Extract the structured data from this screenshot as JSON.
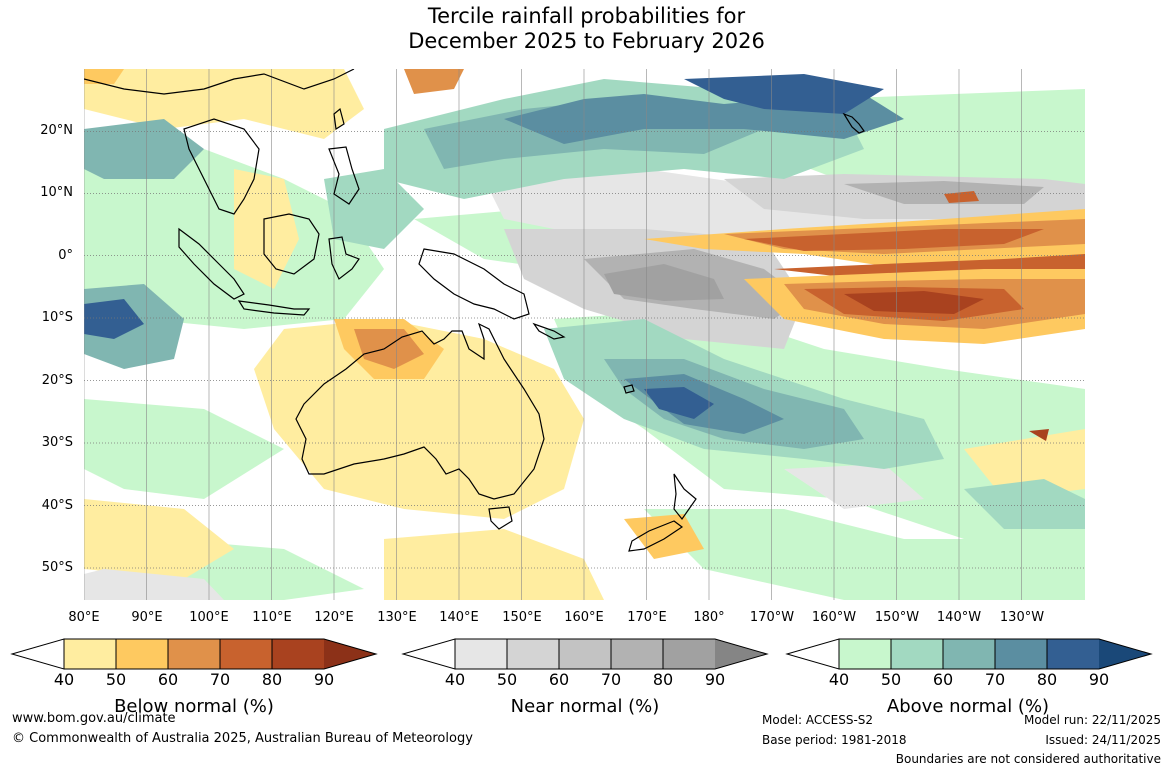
{
  "title": {
    "line1": "Tercile rainfall probabilities for",
    "line2": "December 2025 to February 2026"
  },
  "map": {
    "lat_labels": [
      "20°N",
      "10°N",
      "0°",
      "10°S",
      "20°S",
      "30°S",
      "40°S",
      "50°S"
    ],
    "lon_labels": [
      "80°E",
      "90°E",
      "100°E",
      "110°E",
      "120°E",
      "130°E",
      "140°E",
      "150°E",
      "160°E",
      "170°E",
      "180°",
      "170°W",
      "160°W",
      "150°W",
      "140°W",
      "130°W"
    ],
    "land_outline": "coastline-black",
    "ocean_grid": "dotted"
  },
  "colorbars": [
    {
      "name": "below",
      "title": "Below normal (%)",
      "ticks": [
        "40",
        "50",
        "60",
        "70",
        "80",
        "90"
      ],
      "colors": [
        "#ffeda0",
        "#fec960",
        "#e0914a",
        "#c8622e",
        "#a9421f",
        "#8c3118"
      ]
    },
    {
      "name": "near",
      "title": "Near normal (%)",
      "ticks": [
        "40",
        "50",
        "60",
        "70",
        "80",
        "90"
      ],
      "colors": [
        "#e6e6e6",
        "#d4d4d4",
        "#c3c3c3",
        "#b2b2b2",
        "#a1a1a1",
        "#858585"
      ]
    },
    {
      "name": "above",
      "title": "Above normal (%)",
      "ticks": [
        "40",
        "50",
        "60",
        "70",
        "80",
        "90"
      ],
      "colors": [
        "#c8f7cd",
        "#a2d9c1",
        "#80b6b1",
        "#5b8ea1",
        "#335f92",
        "#1a4878"
      ]
    }
  ],
  "footer": {
    "website": "www.bom.gov.au/climate",
    "copyright": "© Commonwealth of Australia 2025, Australian Bureau of Meteorology",
    "model": "Model: ACCESS-S2",
    "base_period": "Base period: 1981-2018",
    "model_run": "Model run: 22/11/2025",
    "issued": "Issued: 24/11/2025",
    "boundaries": "Boundaries are not considered authoritative"
  }
}
